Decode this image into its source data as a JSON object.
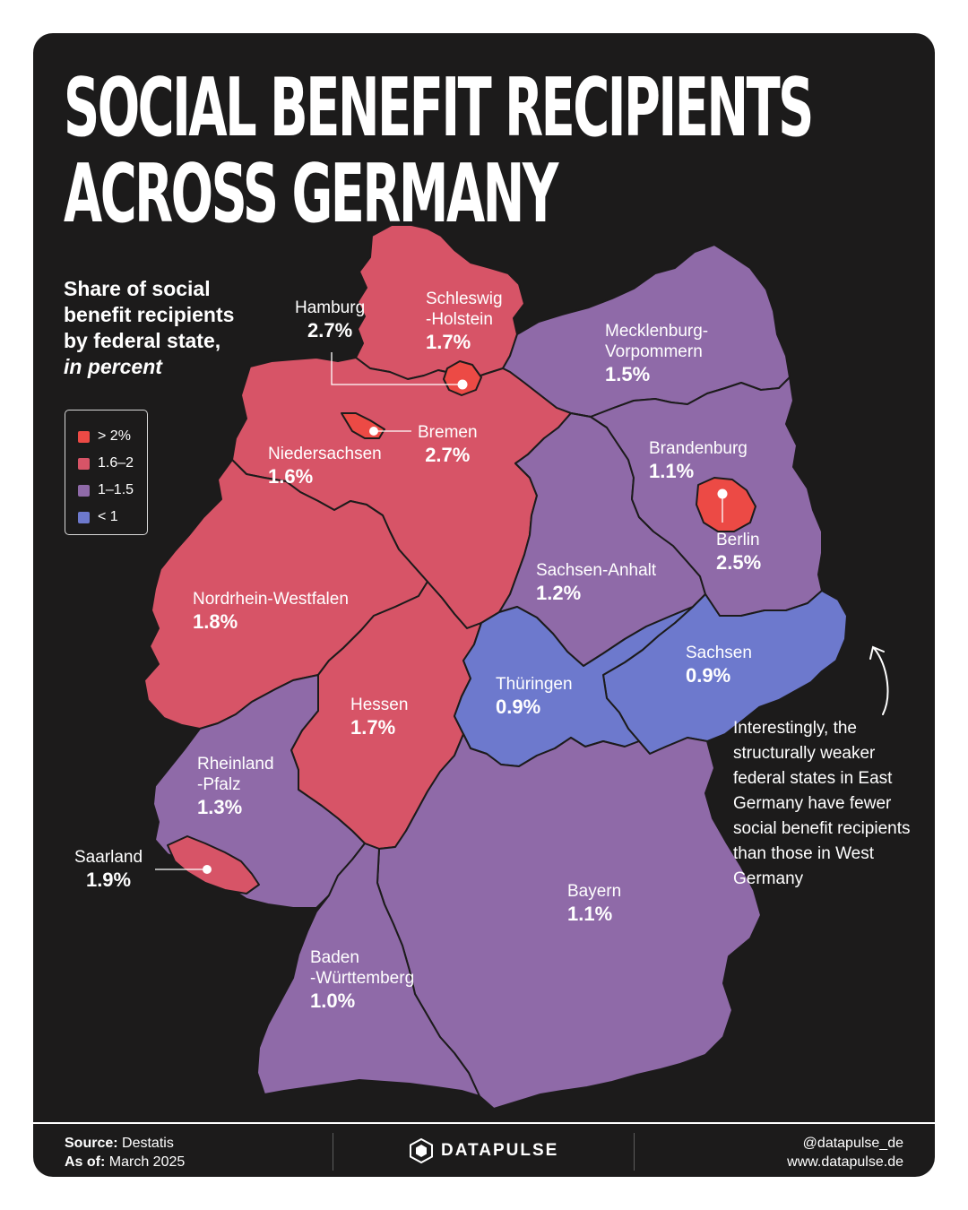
{
  "title": [
    "SOCIAL BENEFIT RECIPIENTS",
    "ACROSS GERMANY"
  ],
  "subtitle": {
    "line1": "Share of social",
    "line2": "benefit recipients",
    "line3": "by federal state,",
    "line4": "in percent"
  },
  "legend": [
    {
      "label": "> 2%",
      "color": "#ec4a45"
    },
    {
      "label": "1.6–2",
      "color": "#d75467"
    },
    {
      "label": "1–1.5",
      "color": "#8f6aa8"
    },
    {
      "label": "< 1",
      "color": "#6d79cd"
    }
  ],
  "states": [
    {
      "key": "schleswig_holstein",
      "name": "Schleswig\n-Holstein",
      "value": "1.7%",
      "value_num": 1.7,
      "class": "1.6–2"
    },
    {
      "key": "hamburg",
      "name": "Hamburg",
      "value": "2.7%",
      "value_num": 2.7,
      "class": "> 2%"
    },
    {
      "key": "mecklenburg_vorpommern",
      "name": "Mecklenburg-\nVorpommern",
      "value": "1.5%",
      "value_num": 1.5,
      "class": "1–1.5"
    },
    {
      "key": "bremen",
      "name": "Bremen",
      "value": "2.7%",
      "value_num": 2.7,
      "class": "> 2%"
    },
    {
      "key": "niedersachsen",
      "name": "Niedersachsen",
      "value": "1.6%",
      "value_num": 1.6,
      "class": "1.6–2"
    },
    {
      "key": "brandenburg",
      "name": "Brandenburg",
      "value": "1.1%",
      "value_num": 1.1,
      "class": "1–1.5"
    },
    {
      "key": "berlin",
      "name": "Berlin",
      "value": "2.5%",
      "value_num": 2.5,
      "class": "> 2%"
    },
    {
      "key": "sachsen_anhalt",
      "name": "Sachsen-Anhalt",
      "value": "1.2%",
      "value_num": 1.2,
      "class": "1–1.5"
    },
    {
      "key": "nordrhein_westfalen",
      "name": "Nordrhein-Westfalen",
      "value": "1.8%",
      "value_num": 1.8,
      "class": "1.6–2"
    },
    {
      "key": "sachsen",
      "name": "Sachsen",
      "value": "0.9%",
      "value_num": 0.9,
      "class": "< 1"
    },
    {
      "key": "thueringen",
      "name": "Thüringen",
      "value": "0.9%",
      "value_num": 0.9,
      "class": "< 1"
    },
    {
      "key": "hessen",
      "name": "Hessen",
      "value": "1.7%",
      "value_num": 1.7,
      "class": "1.6–2"
    },
    {
      "key": "rheinland_pfalz",
      "name": "Rheinland\n-Pfalz",
      "value": "1.3%",
      "value_num": 1.3,
      "class": "1–1.5"
    },
    {
      "key": "saarland",
      "name": "Saarland",
      "value": "1.9%",
      "value_num": 1.9,
      "class": "1.6–2"
    },
    {
      "key": "bayern",
      "name": "Bayern",
      "value": "1.1%",
      "value_num": 1.1,
      "class": "1–1.5"
    },
    {
      "key": "baden_wuerttemberg",
      "name": "Baden\n-Württemberg",
      "value": "1.0%",
      "value_num": 1.0,
      "class": "1–1.5"
    }
  ],
  "note": "Interestingly, the structurally weaker federal states in East Germany have fewer social benefit recipients than those in West Germany",
  "footer": {
    "source_label": "Source:",
    "source_value": "Destatis",
    "asof_label": "As of:",
    "asof_value": "March 2025",
    "brand": "DATAPULSE",
    "handle": "@datapulse_de",
    "website": "www.datapulse.de"
  },
  "colors": {
    "background": "#1c1b1b",
    "border_lines": "#1c1b1b",
    "text": "#ffffff"
  },
  "icons": [
    "datapulse-logo-icon",
    "curved-arrow-icon"
  ]
}
